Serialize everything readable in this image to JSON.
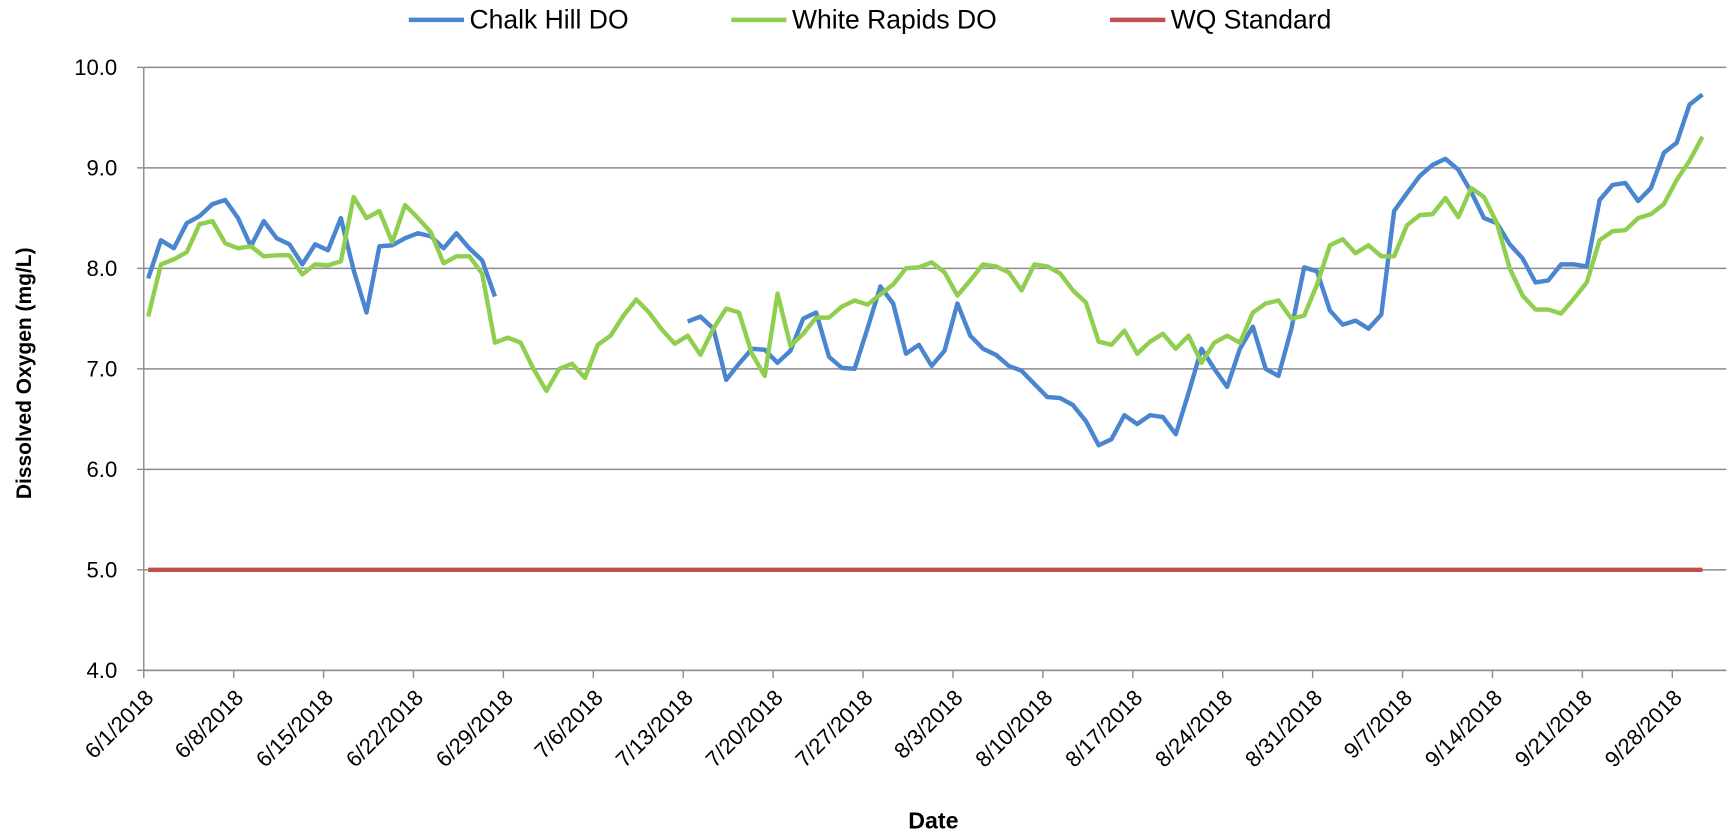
{
  "chart_data": {
    "type": "line",
    "xlabel": "Date",
    "ylabel": "Dissolved Oxygen (mg/L)",
    "x": [
      "6/1/2018",
      "6/2/2018",
      "6/3/2018",
      "6/4/2018",
      "6/5/2018",
      "6/6/2018",
      "6/7/2018",
      "6/8/2018",
      "6/9/2018",
      "6/10/2018",
      "6/11/2018",
      "6/12/2018",
      "6/13/2018",
      "6/14/2018",
      "6/15/2018",
      "6/16/2018",
      "6/17/2018",
      "6/18/2018",
      "6/19/2018",
      "6/20/2018",
      "6/21/2018",
      "6/22/2018",
      "6/23/2018",
      "6/24/2018",
      "6/25/2018",
      "6/26/2018",
      "6/27/2018",
      "6/28/2018",
      "6/29/2018",
      "6/30/2018",
      "7/1/2018",
      "7/2/2018",
      "7/3/2018",
      "7/4/2018",
      "7/5/2018",
      "7/6/2018",
      "7/7/2018",
      "7/8/2018",
      "7/9/2018",
      "7/10/2018",
      "7/11/2018",
      "7/12/2018",
      "7/13/2018",
      "7/14/2018",
      "7/15/2018",
      "7/16/2018",
      "7/17/2018",
      "7/18/2018",
      "7/19/2018",
      "7/20/2018",
      "7/21/2018",
      "7/22/2018",
      "7/23/2018",
      "7/24/2018",
      "7/25/2018",
      "7/26/2018",
      "7/27/2018",
      "7/28/2018",
      "7/29/2018",
      "7/30/2018",
      "7/31/2018",
      "8/1/2018",
      "8/2/2018",
      "8/3/2018",
      "8/4/2018",
      "8/5/2018",
      "8/6/2018",
      "8/7/2018",
      "8/8/2018",
      "8/9/2018",
      "8/10/2018",
      "8/11/2018",
      "8/12/2018",
      "8/13/2018",
      "8/14/2018",
      "8/15/2018",
      "8/16/2018",
      "8/17/2018",
      "8/18/2018",
      "8/19/2018",
      "8/20/2018",
      "8/21/2018",
      "8/22/2018",
      "8/23/2018",
      "8/24/2018",
      "8/25/2018",
      "8/26/2018",
      "8/27/2018",
      "8/28/2018",
      "8/29/2018",
      "8/30/2018",
      "8/31/2018",
      "9/1/2018",
      "9/2/2018",
      "9/3/2018",
      "9/4/2018",
      "9/5/2018",
      "9/6/2018",
      "9/7/2018",
      "9/8/2018",
      "9/9/2018",
      "9/10/2018",
      "9/11/2018",
      "9/12/2018",
      "9/13/2018",
      "9/14/2018",
      "9/15/2018",
      "9/16/2018",
      "9/17/2018",
      "9/18/2018",
      "9/19/2018",
      "9/20/2018",
      "9/21/2018",
      "9/22/2018",
      "9/23/2018",
      "9/24/2018",
      "9/25/2018",
      "9/26/2018",
      "9/27/2018",
      "9/28/2018",
      "9/29/2018",
      "9/30/2018"
    ],
    "series": [
      {
        "name": "Chalk Hill DO",
        "color": "#4a86d0",
        "values": [
          7.9,
          8.28,
          8.2,
          8.45,
          8.52,
          8.64,
          8.68,
          8.5,
          8.22,
          8.47,
          8.3,
          8.24,
          8.04,
          8.24,
          8.18,
          8.5,
          7.98,
          7.56,
          8.22,
          8.23,
          8.3,
          8.35,
          8.32,
          8.2,
          8.35,
          8.2,
          8.08,
          7.72,
          null,
          null,
          null,
          null,
          null,
          null,
          null,
          null,
          null,
          null,
          null,
          null,
          null,
          null,
          7.47,
          7.52,
          7.4,
          6.89,
          7.05,
          7.2,
          7.19,
          7.06,
          7.18,
          7.5,
          7.56,
          7.12,
          7.01,
          7.0,
          7.4,
          7.82,
          7.65,
          7.15,
          7.24,
          7.03,
          7.18,
          7.65,
          7.33,
          7.2,
          7.14,
          7.03,
          6.98,
          6.85,
          6.72,
          6.71,
          6.64,
          6.48,
          6.24,
          6.3,
          6.54,
          6.45,
          6.54,
          6.52,
          6.35,
          6.76,
          7.2,
          7.0,
          6.82,
          7.2,
          7.42,
          7.0,
          6.93,
          7.4,
          8.01,
          7.97,
          7.58,
          7.44,
          7.48,
          7.4,
          7.54,
          8.57,
          8.75,
          8.92,
          9.03,
          9.09,
          8.98,
          8.76,
          8.5,
          8.45,
          8.24,
          8.1,
          7.86,
          7.88,
          8.04,
          8.04,
          8.02,
          8.68,
          8.83,
          8.85,
          8.67,
          8.8,
          9.15,
          9.25,
          9.63,
          9.73
        ]
      },
      {
        "name": "White Rapids DO",
        "color": "#8fce4f",
        "values": [
          7.52,
          8.04,
          8.09,
          8.16,
          8.44,
          8.47,
          8.25,
          8.2,
          8.22,
          8.12,
          8.13,
          8.13,
          7.94,
          8.04,
          8.03,
          8.07,
          8.71,
          8.5,
          8.57,
          8.26,
          8.63,
          8.5,
          8.36,
          8.05,
          8.12,
          8.12,
          7.95,
          7.26,
          7.31,
          7.26,
          7.0,
          6.78,
          7.0,
          7.05,
          6.91,
          7.24,
          7.33,
          7.53,
          7.69,
          7.56,
          7.39,
          7.25,
          7.33,
          7.14,
          7.4,
          7.6,
          7.56,
          7.15,
          6.93,
          7.75,
          7.23,
          7.35,
          7.51,
          7.51,
          7.62,
          7.68,
          7.64,
          7.74,
          7.84,
          8.0,
          8.01,
          8.06,
          7.96,
          7.73,
          7.88,
          8.04,
          8.02,
          7.96,
          7.78,
          8.04,
          8.02,
          7.95,
          7.78,
          7.66,
          7.27,
          7.24,
          7.38,
          7.15,
          7.27,
          7.35,
          7.2,
          7.33,
          7.06,
          7.26,
          7.33,
          7.26,
          7.56,
          7.65,
          7.68,
          7.5,
          7.53,
          7.84,
          8.23,
          8.29,
          8.15,
          8.23,
          8.12,
          8.12,
          8.43,
          8.53,
          8.54,
          8.7,
          8.51,
          8.8,
          8.71,
          8.45,
          8.0,
          7.73,
          7.59,
          7.59,
          7.55,
          7.7,
          7.86,
          8.28,
          8.37,
          8.38,
          8.5,
          8.54,
          8.64,
          8.88,
          9.07,
          9.31
        ]
      },
      {
        "name": "WQ Standard",
        "color": "#c0504d",
        "values": [
          5,
          5,
          5,
          5,
          5,
          5,
          5,
          5,
          5,
          5,
          5,
          5,
          5,
          5,
          5,
          5,
          5,
          5,
          5,
          5,
          5,
          5,
          5,
          5,
          5,
          5,
          5,
          5,
          5,
          5,
          5,
          5,
          5,
          5,
          5,
          5,
          5,
          5,
          5,
          5,
          5,
          5,
          5,
          5,
          5,
          5,
          5,
          5,
          5,
          5,
          5,
          5,
          5,
          5,
          5,
          5,
          5,
          5,
          5,
          5,
          5,
          5,
          5,
          5,
          5,
          5,
          5,
          5,
          5,
          5,
          5,
          5,
          5,
          5,
          5,
          5,
          5,
          5,
          5,
          5,
          5,
          5,
          5,
          5,
          5,
          5,
          5,
          5,
          5,
          5,
          5,
          5,
          5,
          5,
          5,
          5,
          5,
          5,
          5,
          5,
          5,
          5,
          5,
          5,
          5,
          5,
          5,
          5,
          5,
          5,
          5,
          5,
          5,
          5,
          5,
          5,
          5,
          5,
          5,
          5,
          5,
          5
        ]
      }
    ],
    "xlim": [
      "6/1/2018",
      "10/1/2018"
    ],
    "xticks": [
      "6/1/2018",
      "6/8/2018",
      "6/15/2018",
      "6/22/2018",
      "6/29/2018",
      "7/6/2018",
      "7/13/2018",
      "7/20/2018",
      "7/27/2018",
      "8/3/2018",
      "8/10/2018",
      "8/17/2018",
      "8/24/2018",
      "8/31/2018",
      "9/7/2018",
      "9/14/2018",
      "9/21/2018",
      "9/28/2018"
    ],
    "ylim": [
      4,
      10
    ],
    "yticks": [
      {
        "value": 4,
        "label": "4.0"
      },
      {
        "value": 5,
        "label": "5.0"
      },
      {
        "value": 6,
        "label": "6.0"
      },
      {
        "value": 7,
        "label": "7.0"
      },
      {
        "value": 8,
        "label": "8.0"
      },
      {
        "value": 9,
        "label": "9.0"
      },
      {
        "value": 10,
        "label": "10.0"
      }
    ],
    "grid": true,
    "legend": "top"
  }
}
